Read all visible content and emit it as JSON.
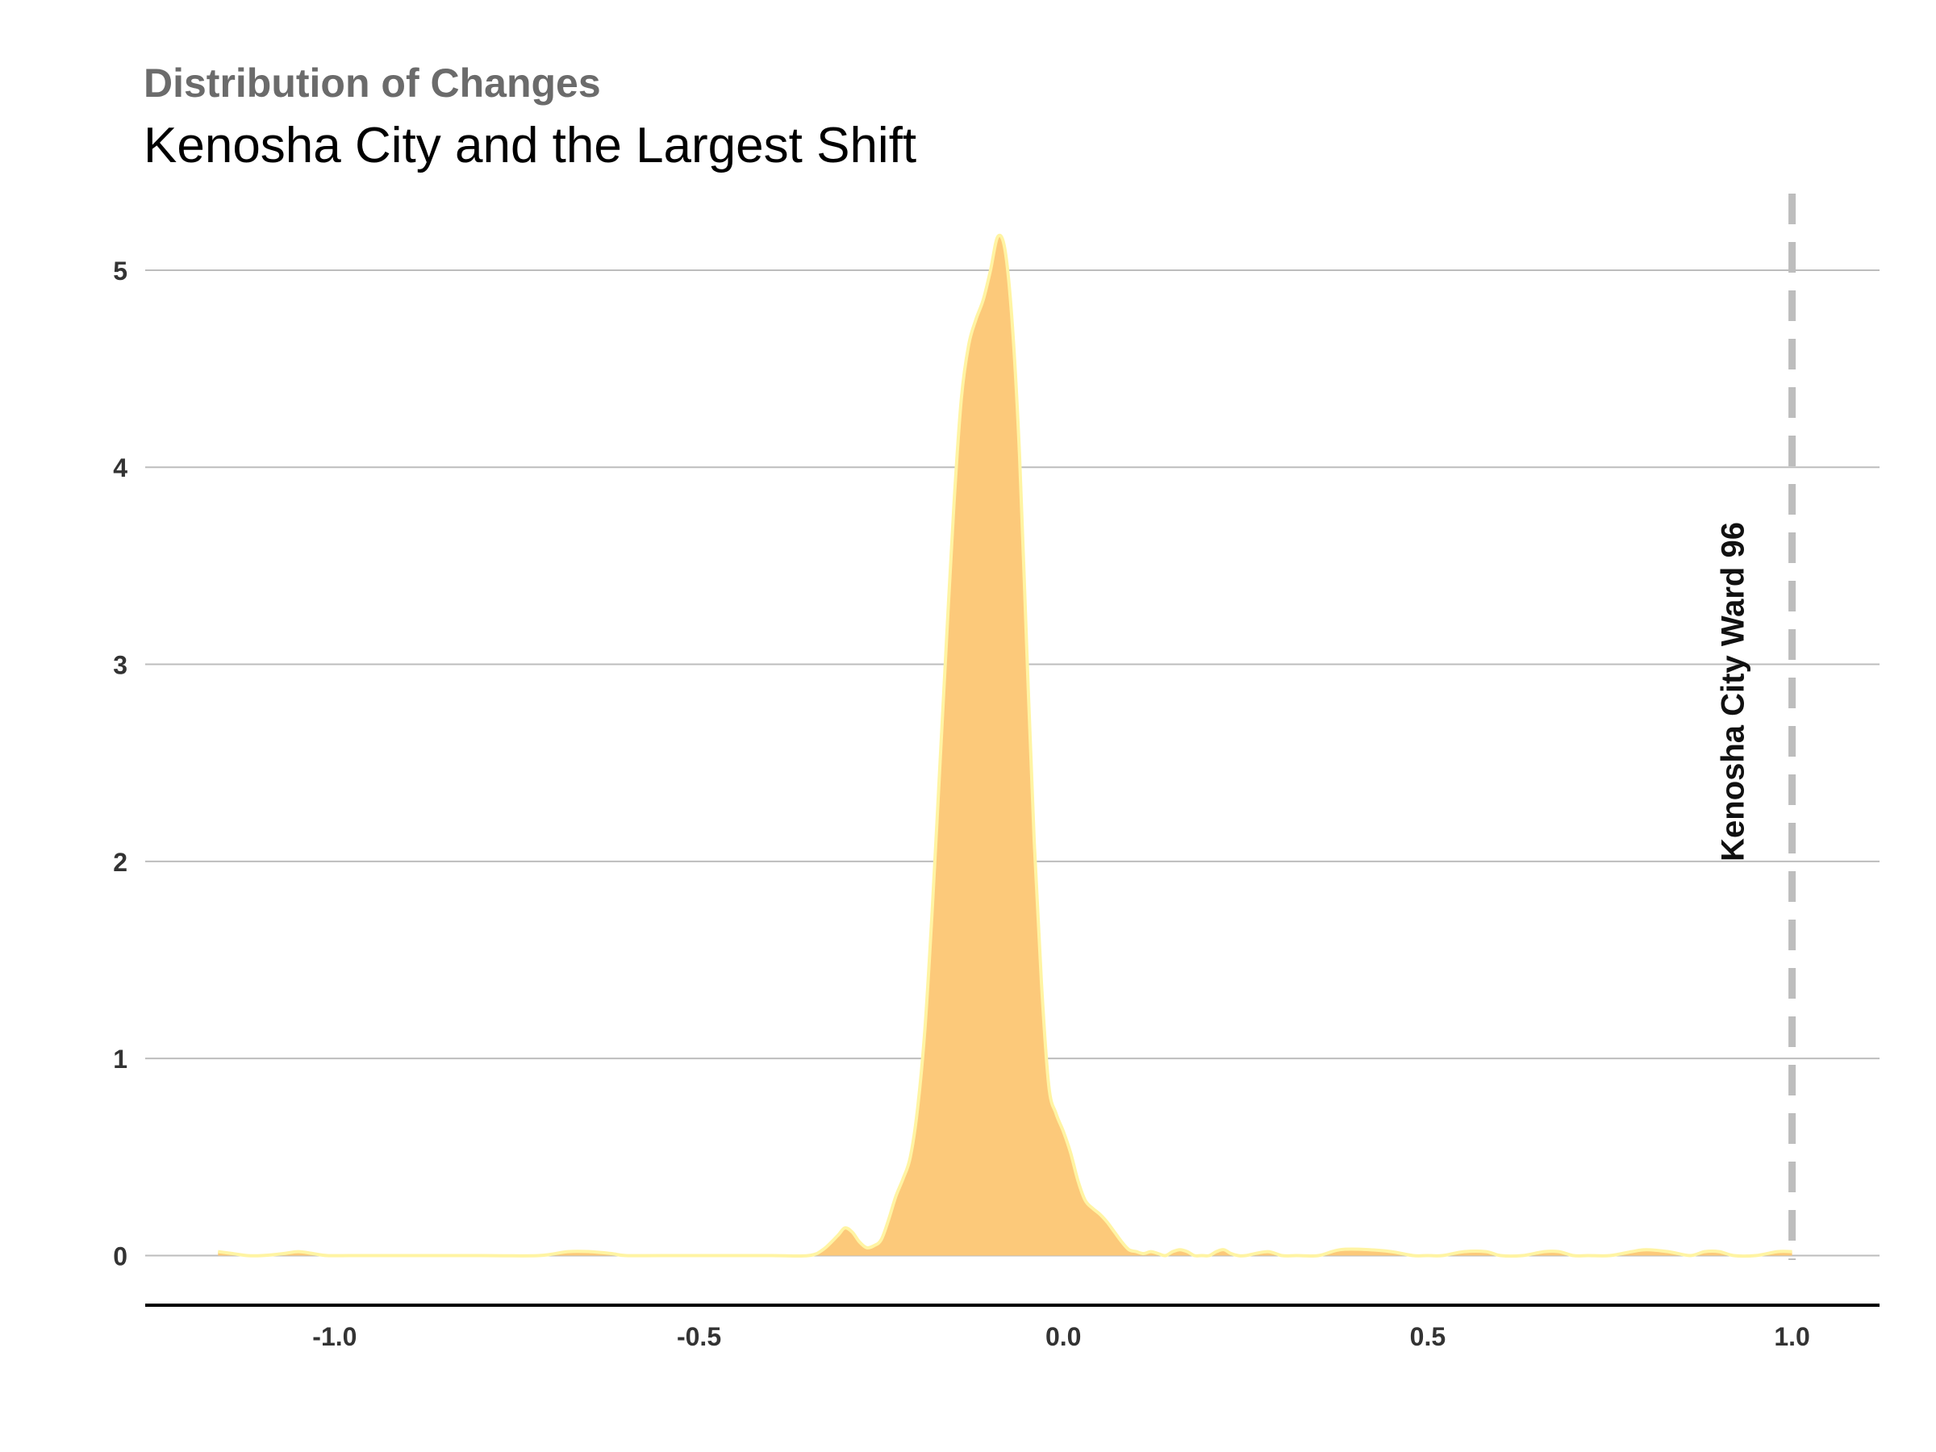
{
  "header": {
    "kicker": "Distribution of Changes",
    "title": "Kenosha City and the Largest Shift"
  },
  "chart_data": {
    "type": "area",
    "title": "Distribution of Changes",
    "subtitle": "Kenosha City and the Largest Shift",
    "xlabel": "",
    "ylabel": "",
    "xlim": [
      -1.26,
      1.12
    ],
    "ylim": [
      -0.26,
      5.45
    ],
    "x_ticks": [
      -1.0,
      -0.5,
      0.0,
      0.5,
      1.0
    ],
    "x_tick_labels": [
      "-1.0",
      "-0.5",
      "0.0",
      "0.5",
      "1.0"
    ],
    "y_ticks": [
      0,
      1,
      2,
      3,
      4,
      5
    ],
    "y_tick_labels": [
      "0",
      "1",
      "2",
      "3",
      "4",
      "5"
    ],
    "grid": "horizontal",
    "fill_color": "#fcc97a",
    "line_color": "#fff4a3",
    "series": [
      {
        "x": [
          -1.16,
          -1.14,
          -1.12,
          -1.1,
          -1.07,
          -1.05,
          -1.03,
          -1.01,
          -0.98,
          -0.95,
          -0.9,
          -0.8,
          -0.72,
          -0.68,
          -0.65,
          -0.62,
          -0.6,
          -0.55,
          -0.45,
          -0.4,
          -0.35,
          -0.33,
          -0.31,
          -0.3,
          -0.29,
          -0.28,
          -0.27,
          -0.26,
          -0.25,
          -0.24,
          -0.23,
          -0.22,
          -0.21,
          -0.2,
          -0.19,
          -0.18,
          -0.17,
          -0.16,
          -0.15,
          -0.14,
          -0.13,
          -0.12,
          -0.11,
          -0.1,
          -0.09,
          -0.08,
          -0.07,
          -0.06,
          -0.05,
          -0.04,
          -0.03,
          -0.02,
          -0.01,
          0.0,
          0.01,
          0.02,
          0.03,
          0.04,
          0.05,
          0.06,
          0.07,
          0.08,
          0.09,
          0.1,
          0.11,
          0.12,
          0.13,
          0.14,
          0.15,
          0.16,
          0.17,
          0.18,
          0.19,
          0.2,
          0.21,
          0.22,
          0.23,
          0.24,
          0.25,
          0.28,
          0.3,
          0.32,
          0.35,
          0.38,
          0.42,
          0.45,
          0.48,
          0.5,
          0.52,
          0.55,
          0.58,
          0.6,
          0.63,
          0.66,
          0.68,
          0.7,
          0.72,
          0.75,
          0.78,
          0.8,
          0.83,
          0.86,
          0.88,
          0.9,
          0.92,
          0.95,
          0.98,
          1.0
        ],
        "y": [
          0.02,
          0.01,
          0.0,
          0.0,
          0.01,
          0.02,
          0.01,
          0.0,
          0.0,
          0.0,
          0.0,
          0.0,
          0.0,
          0.02,
          0.02,
          0.01,
          0.0,
          0.0,
          0.0,
          0.0,
          0.0,
          0.03,
          0.1,
          0.14,
          0.12,
          0.07,
          0.04,
          0.05,
          0.08,
          0.18,
          0.3,
          0.39,
          0.5,
          0.75,
          1.15,
          1.75,
          2.45,
          3.15,
          3.82,
          4.35,
          4.62,
          4.75,
          4.85,
          5.0,
          5.17,
          5.1,
          4.72,
          4.05,
          3.05,
          2.1,
          1.38,
          0.86,
          0.72,
          0.63,
          0.52,
          0.38,
          0.28,
          0.24,
          0.21,
          0.17,
          0.12,
          0.07,
          0.03,
          0.02,
          0.01,
          0.02,
          0.01,
          0.0,
          0.02,
          0.03,
          0.02,
          0.0,
          0.0,
          0.0,
          0.02,
          0.03,
          0.01,
          0.0,
          0.0,
          0.02,
          0.0,
          0.0,
          0.0,
          0.03,
          0.03,
          0.02,
          0.0,
          0.0,
          0.0,
          0.02,
          0.02,
          0.0,
          0.0,
          0.02,
          0.02,
          0.0,
          0.0,
          0.0,
          0.02,
          0.03,
          0.02,
          0.0,
          0.02,
          0.02,
          0.0,
          0.0,
          0.02,
          0.02
        ]
      }
    ],
    "annotations": [
      {
        "type": "vline",
        "x": 1.0,
        "style": "dashed",
        "color": "#bdbdbd"
      },
      {
        "type": "text",
        "text": "Kenosha City Ward 96",
        "x": 0.92,
        "y": 2.0,
        "rotation": -90
      }
    ]
  }
}
